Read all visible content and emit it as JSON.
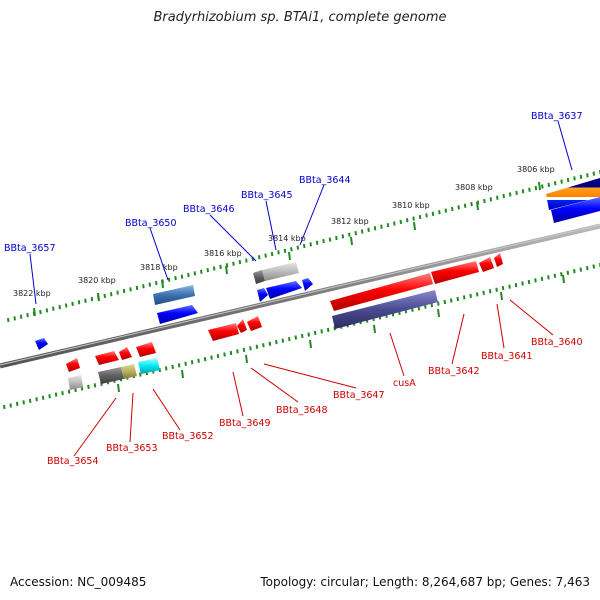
{
  "title": "Bradyrhizobium sp. BTAi1, complete genome",
  "footer": {
    "accession": "Accession: NC_009485",
    "topology": "Topology: circular; Length: 8,264,687 bp; Genes: 7,463"
  },
  "colors": {
    "forward_label": "#0000cc",
    "reverse_label": "#cc0000",
    "tick": "#228822",
    "backbone": "#888888"
  },
  "kbp_ticks": [
    {
      "label": "3822 kbp"
    },
    {
      "label": "3820 kbp"
    },
    {
      "label": "3818 kbp"
    },
    {
      "label": "3816 kbp"
    },
    {
      "label": "3814 kbp"
    },
    {
      "label": "3812 kbp"
    },
    {
      "label": "3810 kbp"
    },
    {
      "label": "3808 kbp"
    },
    {
      "label": "3806 kbp"
    }
  ],
  "forward_genes": [
    {
      "label": "BBta_3657"
    },
    {
      "label": "BBta_3650"
    },
    {
      "label": "BBta_3646"
    },
    {
      "label": "BBta_3645"
    },
    {
      "label": "BBta_3644"
    },
    {
      "label": "BBta_3637"
    }
  ],
  "reverse_genes": [
    {
      "label": "BBta_3654"
    },
    {
      "label": "BBta_3653"
    },
    {
      "label": "BBta_3652"
    },
    {
      "label": "BBta_3649"
    },
    {
      "label": "BBta_3648"
    },
    {
      "label": "BBta_3647"
    },
    {
      "label": "cusA"
    },
    {
      "label": "BBta_3642"
    },
    {
      "label": "BBta_3641"
    },
    {
      "label": "BBta_3640"
    }
  ]
}
